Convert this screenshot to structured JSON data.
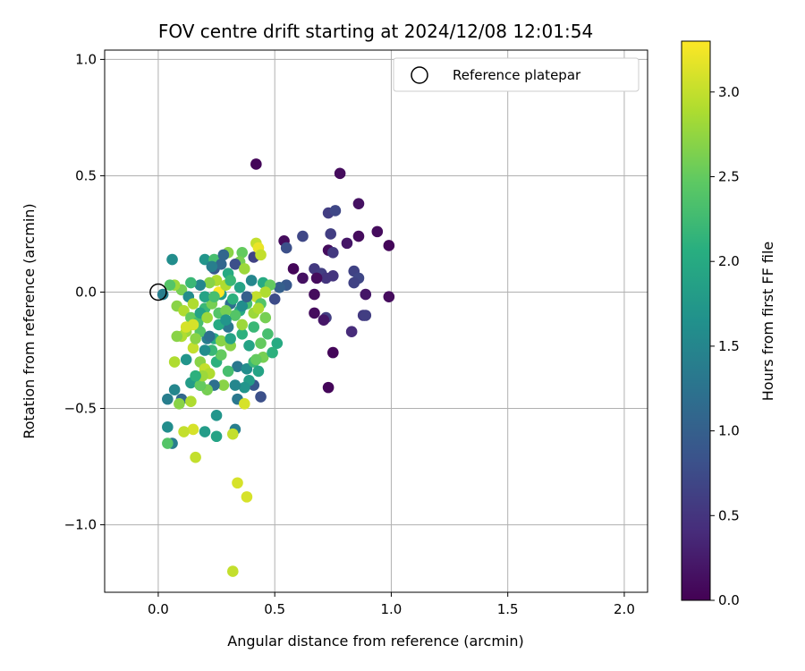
{
  "chart_data": {
    "type": "scatter",
    "title": "FOV centre drift starting at 2024/12/08 12:01:54",
    "xlabel": "Angular distance from reference (arcmin)",
    "ylabel": "Rotation from reference (arcmin)",
    "xlim": [
      -0.23,
      2.1
    ],
    "ylim": [
      -1.29,
      1.04
    ],
    "xticks": [
      0.0,
      0.5,
      1.0,
      1.5,
      2.0
    ],
    "xtick_labels": [
      "0.0",
      "0.5",
      "1.0",
      "1.5",
      "2.0"
    ],
    "yticks": [
      -1.0,
      -0.5,
      0.0,
      0.5,
      1.0
    ],
    "ytick_labels": [
      "−1.0",
      "−0.5",
      "0.0",
      "0.5",
      "1.0"
    ],
    "grid": true,
    "legend": {
      "position": "top-right",
      "entries": [
        "Reference platepar"
      ]
    },
    "colorbar": {
      "label": "Hours from first FF file",
      "range": [
        0,
        3.3
      ],
      "colormap": "viridis",
      "ticks": [
        0.0,
        0.5,
        1.0,
        1.5,
        2.0,
        2.5,
        3.0
      ],
      "tick_labels": [
        "0.0",
        "0.5",
        "1.0",
        "1.5",
        "2.0",
        "2.5",
        "3.0"
      ]
    },
    "reference_point": {
      "x": 0.0,
      "y": 0.0
    },
    "points": [
      [
        0.42,
        0.55,
        0.05
      ],
      [
        0.78,
        0.51,
        0.1
      ],
      [
        0.86,
        0.38,
        0.15
      ],
      [
        0.73,
        0.34,
        0.6
      ],
      [
        0.76,
        0.35,
        0.7
      ],
      [
        0.94,
        0.26,
        0.1
      ],
      [
        0.86,
        0.24,
        0.1
      ],
      [
        0.81,
        0.21,
        0.2
      ],
      [
        0.74,
        0.25,
        0.6
      ],
      [
        0.62,
        0.24,
        0.7
      ],
      [
        0.54,
        0.22,
        0.1
      ],
      [
        0.55,
        0.19,
        0.8
      ],
      [
        0.99,
        0.2,
        0.05
      ],
      [
        0.73,
        0.18,
        0.1
      ],
      [
        0.75,
        0.17,
        0.55
      ],
      [
        0.58,
        0.1,
        0.05
      ],
      [
        0.67,
        0.1,
        0.55
      ],
      [
        0.7,
        0.08,
        0.6
      ],
      [
        0.72,
        0.06,
        0.5
      ],
      [
        0.75,
        0.07,
        0.5
      ],
      [
        0.68,
        0.06,
        0.1
      ],
      [
        0.84,
        0.09,
        0.65
      ],
      [
        0.86,
        0.06,
        0.7
      ],
      [
        0.84,
        0.04,
        0.65
      ],
      [
        0.62,
        0.06,
        0.15
      ],
      [
        0.55,
        0.03,
        0.9
      ],
      [
        0.52,
        0.02,
        1.0
      ],
      [
        0.5,
        -0.03,
        0.75
      ],
      [
        0.67,
        -0.01,
        0.1
      ],
      [
        0.89,
        -0.01,
        0.2
      ],
      [
        0.99,
        -0.02,
        0.1
      ],
      [
        0.67,
        -0.09,
        0.1
      ],
      [
        0.72,
        -0.11,
        0.6
      ],
      [
        0.71,
        -0.12,
        0.2
      ],
      [
        0.88,
        -0.1,
        0.55
      ],
      [
        0.89,
        -0.1,
        0.6
      ],
      [
        0.83,
        -0.17,
        0.4
      ],
      [
        0.75,
        -0.26,
        0.05
      ],
      [
        0.73,
        -0.41,
        0.05
      ],
      [
        0.41,
        0.15,
        0.65
      ],
      [
        0.44,
        -0.45,
        0.8
      ],
      [
        0.41,
        -0.4,
        0.9
      ],
      [
        0.02,
        -0.01,
        1.4
      ],
      [
        0.06,
        0.14,
        1.6
      ],
      [
        0.2,
        0.14,
        1.7
      ],
      [
        0.24,
        0.14,
        2.3
      ],
      [
        0.3,
        0.17,
        2.7
      ],
      [
        0.36,
        0.17,
        2.5
      ],
      [
        0.42,
        0.21,
        3.0
      ],
      [
        0.43,
        0.19,
        3.2
      ],
      [
        0.44,
        0.16,
        3.0
      ],
      [
        0.35,
        0.13,
        2.6
      ],
      [
        0.33,
        0.12,
        0.8
      ],
      [
        0.28,
        0.16,
        1.1
      ],
      [
        0.24,
        0.1,
        0.9
      ],
      [
        0.3,
        0.08,
        2.0
      ],
      [
        0.37,
        0.1,
        2.8
      ],
      [
        0.4,
        0.05,
        1.5
      ],
      [
        0.45,
        0.04,
        2.0
      ],
      [
        0.48,
        0.03,
        2.5
      ],
      [
        0.46,
        0.0,
        2.9
      ],
      [
        0.42,
        -0.02,
        3.0
      ],
      [
        0.44,
        -0.05,
        2.4
      ],
      [
        0.38,
        -0.05,
        2.3
      ],
      [
        0.35,
        -0.08,
        2.0
      ],
      [
        0.31,
        -0.05,
        1.2
      ],
      [
        0.27,
        -0.01,
        1.8
      ],
      [
        0.25,
        0.05,
        2.9
      ],
      [
        0.22,
        0.04,
        2.7
      ],
      [
        0.18,
        0.03,
        1.5
      ],
      [
        0.14,
        0.04,
        2.2
      ],
      [
        0.1,
        0.01,
        2.6
      ],
      [
        0.07,
        0.03,
        2.8
      ],
      [
        0.05,
        0.03,
        2.4
      ],
      [
        0.08,
        -0.06,
        2.7
      ],
      [
        0.11,
        -0.08,
        2.9
      ],
      [
        0.14,
        -0.11,
        2.5
      ],
      [
        0.17,
        -0.13,
        2.3
      ],
      [
        0.2,
        -0.07,
        2.2
      ],
      [
        0.23,
        -0.05,
        2.6
      ],
      [
        0.26,
        0.0,
        3.3
      ],
      [
        0.29,
        0.03,
        2.9
      ],
      [
        0.33,
        -0.1,
        2.4
      ],
      [
        0.36,
        -0.06,
        1.6
      ],
      [
        0.41,
        -0.09,
        2.8
      ],
      [
        0.43,
        -0.07,
        2.9
      ],
      [
        0.47,
        -0.18,
        2.3
      ],
      [
        0.51,
        -0.22,
        2.0
      ],
      [
        0.44,
        -0.22,
        2.5
      ],
      [
        0.41,
        -0.15,
        2.2
      ],
      [
        0.36,
        -0.18,
        2.1
      ],
      [
        0.3,
        -0.15,
        1.3
      ],
      [
        0.26,
        -0.14,
        2.0
      ],
      [
        0.24,
        -0.2,
        2.0
      ],
      [
        0.21,
        -0.2,
        1.4
      ],
      [
        0.18,
        -0.17,
        2.4
      ],
      [
        0.15,
        -0.14,
        3.1
      ],
      [
        0.12,
        -0.17,
        2.8
      ],
      [
        0.1,
        -0.19,
        2.9
      ],
      [
        0.08,
        -0.19,
        2.7
      ],
      [
        0.07,
        -0.3,
        2.9
      ],
      [
        0.12,
        -0.29,
        1.7
      ],
      [
        0.15,
        -0.24,
        3.0
      ],
      [
        0.18,
        -0.3,
        2.7
      ],
      [
        0.2,
        -0.33,
        3.0
      ],
      [
        0.22,
        -0.35,
        2.9
      ],
      [
        0.25,
        -0.3,
        2.1
      ],
      [
        0.27,
        -0.27,
        2.5
      ],
      [
        0.31,
        -0.23,
        2.7
      ],
      [
        0.34,
        -0.32,
        1.3
      ],
      [
        0.38,
        -0.33,
        1.6
      ],
      [
        0.41,
        -0.3,
        2.2
      ],
      [
        0.43,
        -0.34,
        1.9
      ],
      [
        0.45,
        -0.28,
        2.6
      ],
      [
        0.49,
        -0.26,
        2.1
      ],
      [
        0.39,
        -0.38,
        1.8
      ],
      [
        0.37,
        -0.41,
        1.7
      ],
      [
        0.33,
        -0.4,
        1.5
      ],
      [
        0.28,
        -0.4,
        2.7
      ],
      [
        0.24,
        -0.4,
        1.2
      ],
      [
        0.21,
        -0.42,
        2.6
      ],
      [
        0.18,
        -0.4,
        1.3
      ],
      [
        0.14,
        -0.39,
        1.8
      ],
      [
        0.1,
        -0.46,
        1.1
      ],
      [
        0.07,
        -0.42,
        1.5
      ],
      [
        0.04,
        -0.46,
        1.4
      ],
      [
        0.09,
        -0.48,
        2.7
      ],
      [
        0.14,
        -0.47,
        2.9
      ],
      [
        0.18,
        -0.4,
        2.5
      ],
      [
        0.25,
        -0.53,
        1.7
      ],
      [
        0.34,
        -0.46,
        1.3
      ],
      [
        0.37,
        -0.48,
        3.1
      ],
      [
        0.33,
        -0.59,
        1.4
      ],
      [
        0.32,
        -0.61,
        3.0
      ],
      [
        0.25,
        -0.62,
        1.9
      ],
      [
        0.2,
        -0.6,
        1.8
      ],
      [
        0.15,
        -0.59,
        3.1
      ],
      [
        0.11,
        -0.6,
        3.0
      ],
      [
        0.06,
        -0.65,
        1.4
      ],
      [
        0.04,
        -0.65,
        2.4
      ],
      [
        0.04,
        -0.58,
        1.6
      ],
      [
        0.16,
        -0.71,
        3.0
      ],
      [
        0.34,
        -0.82,
        3.1
      ],
      [
        0.38,
        -0.88,
        3.1
      ],
      [
        0.32,
        -1.2,
        3.0
      ],
      [
        0.35,
        0.02,
        1.9
      ],
      [
        0.31,
        0.05,
        2.2
      ],
      [
        0.2,
        -0.02,
        1.9
      ],
      [
        0.24,
        -0.02,
        2.3
      ],
      [
        0.26,
        -0.09,
        2.4
      ],
      [
        0.29,
        -0.08,
        2.6
      ],
      [
        0.32,
        -0.03,
        2.1
      ],
      [
        0.18,
        -0.09,
        1.9
      ],
      [
        0.21,
        -0.11,
        2.8
      ],
      [
        0.13,
        -0.02,
        1.6
      ],
      [
        0.15,
        -0.05,
        2.9
      ],
      [
        0.29,
        -0.12,
        1.7
      ],
      [
        0.36,
        -0.14,
        2.8
      ],
      [
        0.39,
        -0.23,
        1.9
      ],
      [
        0.46,
        -0.11,
        2.6
      ],
      [
        0.27,
        -0.21,
        2.7
      ],
      [
        0.23,
        -0.25,
        2.2
      ],
      [
        0.2,
        -0.25,
        1.6
      ],
      [
        0.19,
        -0.36,
        2.8
      ],
      [
        0.16,
        -0.36,
        2.1
      ],
      [
        0.16,
        -0.2,
        2.7
      ],
      [
        0.12,
        -0.15,
        3.1
      ],
      [
        0.3,
        -0.34,
        2.3
      ],
      [
        0.42,
        -0.29,
        2.5
      ],
      [
        0.31,
        -0.2,
        1.9
      ],
      [
        0.27,
        0.12,
        1.1
      ],
      [
        0.23,
        0.11,
        1.4
      ],
      [
        0.38,
        -0.02,
        1.0
      ],
      [
        0.22,
        -0.19,
        1.2
      ]
    ]
  }
}
